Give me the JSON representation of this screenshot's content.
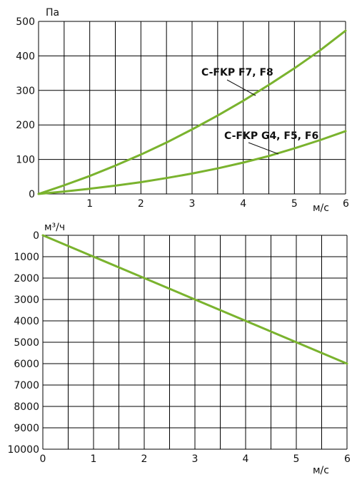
{
  "chart_data": [
    {
      "type": "line",
      "ylabel": "Па",
      "xlabel": "м/с",
      "xlim": [
        0,
        6
      ],
      "ylim": [
        0,
        500
      ],
      "xticks": [
        "1",
        "2",
        "3",
        "4",
        "5",
        "6"
      ],
      "yticks": [
        "0",
        "100",
        "200",
        "300",
        "400",
        "500"
      ],
      "grid": true,
      "line_color": "#7ab32e",
      "series": [
        {
          "name": "C-FKP F7, F8",
          "x": [
            0,
            0.5,
            1,
            1.5,
            2,
            2.5,
            3,
            3.5,
            4,
            4.5,
            5,
            5.5,
            6
          ],
          "values": [
            0,
            25,
            52,
            82,
            114,
            149,
            187,
            227,
            270,
            316,
            364,
            416,
            473
          ]
        },
        {
          "name": "C-FKP G4, F5, F6",
          "x": [
            0,
            0.5,
            1,
            1.5,
            2,
            2.5,
            3,
            3.5,
            4,
            4.5,
            5,
            5.5,
            6
          ],
          "values": [
            0,
            7,
            15,
            24,
            34,
            46,
            59,
            74,
            91,
            110,
            132,
            156,
            182
          ]
        }
      ]
    },
    {
      "type": "line",
      "ylabel": "м³/ч",
      "xlabel": "м/с",
      "xlim": [
        0,
        6
      ],
      "ylim": [
        10000,
        0
      ],
      "xticks": [
        "0",
        "1",
        "2",
        "3",
        "4",
        "5",
        "6"
      ],
      "yticks": [
        "0",
        "1000",
        "2000",
        "3000",
        "4000",
        "5000",
        "6000",
        "7000",
        "8000",
        "9000",
        "10000"
      ],
      "grid": true,
      "line_color": "#7ab32e",
      "series": [
        {
          "x": [
            0,
            6
          ],
          "values": [
            0,
            6000
          ]
        }
      ]
    }
  ]
}
